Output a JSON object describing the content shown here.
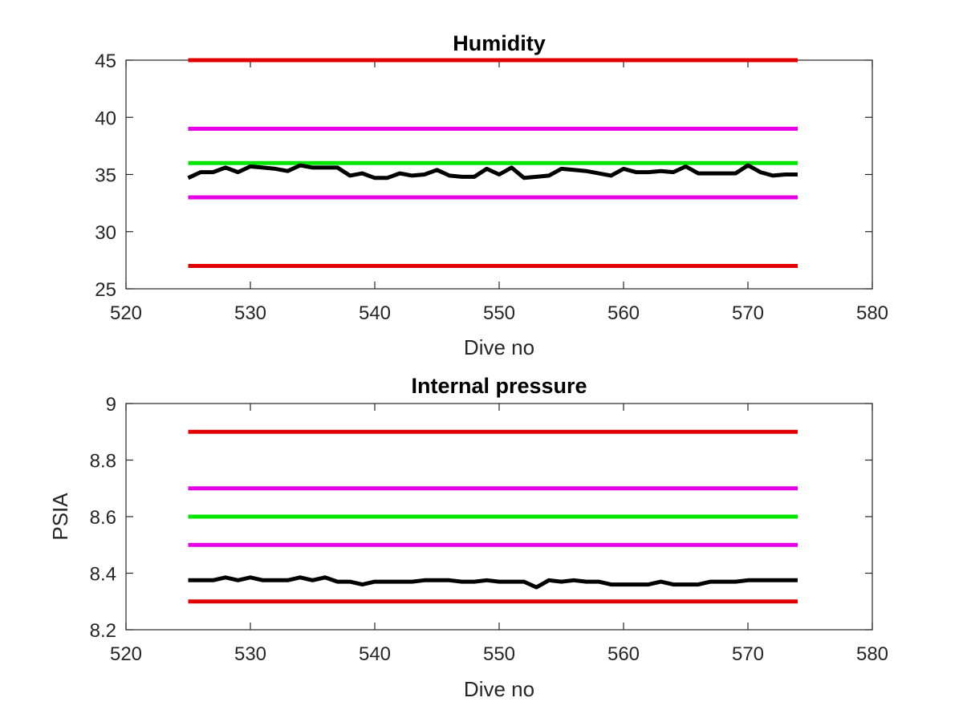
{
  "chart_data": [
    {
      "type": "line",
      "title": "Humidity",
      "xlabel": "Dive no",
      "ylabel": "",
      "xlim": [
        520,
        580
      ],
      "ylim": [
        25,
        45
      ],
      "xticks": [
        "520",
        "530",
        "540",
        "550",
        "560",
        "570",
        "580"
      ],
      "yticks": [
        "25",
        "30",
        "35",
        "40",
        "45"
      ],
      "grid": false,
      "legend": "none",
      "thresholds": [
        {
          "value": 45,
          "color": "#e00000",
          "x_range": [
            525,
            574
          ]
        },
        {
          "value": 39,
          "color": "#e600e6",
          "x_range": [
            525,
            574
          ]
        },
        {
          "value": 36,
          "color": "#00e600",
          "x_range": [
            525,
            574
          ]
        },
        {
          "value": 33,
          "color": "#e600e6",
          "x_range": [
            525,
            574
          ]
        },
        {
          "value": 27,
          "color": "#e00000",
          "x_range": [
            525,
            574
          ]
        }
      ],
      "series": [
        {
          "color": "#000000",
          "x": [
            525,
            526,
            527,
            528,
            529,
            530,
            531,
            532,
            533,
            534,
            535,
            536,
            537,
            538,
            539,
            540,
            541,
            542,
            543,
            544,
            545,
            546,
            547,
            548,
            549,
            550,
            551,
            552,
            553,
            554,
            555,
            556,
            557,
            558,
            559,
            560,
            561,
            562,
            563,
            564,
            565,
            566,
            567,
            568,
            569,
            570,
            571,
            572,
            573,
            574
          ],
          "values": [
            34.7,
            35.2,
            35.2,
            35.6,
            35.2,
            35.7,
            35.6,
            35.5,
            35.3,
            35.8,
            35.6,
            35.6,
            35.6,
            34.9,
            35.1,
            34.7,
            34.7,
            35.1,
            34.9,
            35.0,
            35.4,
            34.9,
            34.8,
            34.8,
            35.5,
            35.0,
            35.6,
            34.7,
            34.8,
            34.9,
            35.5,
            35.4,
            35.3,
            35.1,
            34.9,
            35.5,
            35.2,
            35.2,
            35.3,
            35.2,
            35.7,
            35.1,
            35.1,
            35.1,
            35.1,
            35.8,
            35.2,
            34.9,
            35.0,
            35.0
          ]
        }
      ]
    },
    {
      "type": "line",
      "title": "Internal pressure",
      "xlabel": "Dive no",
      "ylabel": "PSIA",
      "xlim": [
        520,
        580
      ],
      "ylim": [
        8.2,
        9.0
      ],
      "xticks": [
        "520",
        "530",
        "540",
        "550",
        "560",
        "570",
        "580"
      ],
      "yticks": [
        "8.2",
        "8.4",
        "8.6",
        "8.8",
        "9"
      ],
      "grid": false,
      "legend": "none",
      "thresholds": [
        {
          "value": 8.9,
          "color": "#e00000",
          "x_range": [
            525,
            574
          ]
        },
        {
          "value": 8.7,
          "color": "#e600e6",
          "x_range": [
            525,
            574
          ]
        },
        {
          "value": 8.6,
          "color": "#00e600",
          "x_range": [
            525,
            574
          ]
        },
        {
          "value": 8.5,
          "color": "#e600e6",
          "x_range": [
            525,
            574
          ]
        },
        {
          "value": 8.3,
          "color": "#e00000",
          "x_range": [
            525,
            574
          ]
        }
      ],
      "series": [
        {
          "color": "#000000",
          "x": [
            525,
            526,
            527,
            528,
            529,
            530,
            531,
            532,
            533,
            534,
            535,
            536,
            537,
            538,
            539,
            540,
            541,
            542,
            543,
            544,
            545,
            546,
            547,
            548,
            549,
            550,
            551,
            552,
            553,
            554,
            555,
            556,
            557,
            558,
            559,
            560,
            561,
            562,
            563,
            564,
            565,
            566,
            567,
            568,
            569,
            570,
            571,
            572,
            573,
            574
          ],
          "values": [
            8.375,
            8.375,
            8.375,
            8.385,
            8.375,
            8.385,
            8.375,
            8.375,
            8.375,
            8.385,
            8.375,
            8.385,
            8.37,
            8.37,
            8.36,
            8.37,
            8.37,
            8.37,
            8.37,
            8.375,
            8.375,
            8.375,
            8.37,
            8.37,
            8.375,
            8.37,
            8.37,
            8.37,
            8.35,
            8.375,
            8.37,
            8.375,
            8.37,
            8.37,
            8.36,
            8.36,
            8.36,
            8.36,
            8.37,
            8.36,
            8.36,
            8.36,
            8.37,
            8.37,
            8.37,
            8.375,
            8.375,
            8.375,
            8.375,
            8.375
          ]
        }
      ]
    }
  ]
}
